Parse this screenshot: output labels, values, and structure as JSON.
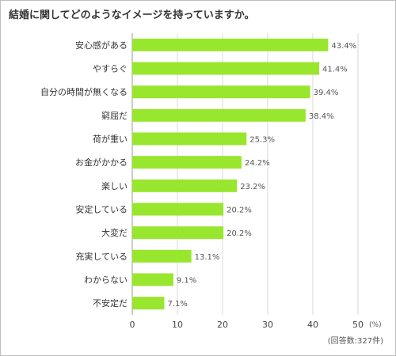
{
  "title": "結婚に関してどのようなイメージを持っていますか。",
  "chart_data": {
    "type": "bar",
    "orientation": "horizontal",
    "categories": [
      "安心感がある",
      "やすらぐ",
      "自分の時間が無くなる",
      "窮屈だ",
      "荷が重い",
      "お金がかかる",
      "楽しい",
      "安定している",
      "大変だ",
      "充実している",
      "わからない",
      "不安定だ"
    ],
    "values": [
      43.4,
      41.4,
      39.4,
      38.4,
      25.3,
      24.2,
      23.2,
      20.2,
      20.2,
      13.1,
      9.1,
      7.1
    ],
    "value_labels": [
      "43.4%",
      "41.4%",
      "39.4%",
      "38.4%",
      "25.3%",
      "24.2%",
      "23.2%",
      "20.2%",
      "20.2%",
      "13.1%",
      "9.1%",
      "7.1%"
    ],
    "xticks": [
      "0",
      "10",
      "20",
      "30",
      "40",
      "50"
    ],
    "xlim": [
      0,
      50
    ],
    "unit_label": "(%)",
    "note": "(回答数:327件)",
    "bar_color": "#99e62e",
    "grid": true
  }
}
